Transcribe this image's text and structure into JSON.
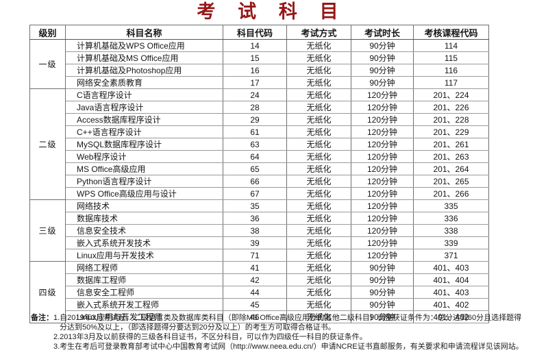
{
  "page": {
    "title": "考 试 科 目",
    "title_color": "#961616"
  },
  "table": {
    "headers": [
      "级别",
      "科目名称",
      "科目代码",
      "考试方式",
      "考试时长",
      "考核课程代码"
    ],
    "groups": [
      {
        "level": "一级",
        "rows": [
          {
            "subject": "计算机基础及WPS Office应用",
            "code": "14",
            "method": "无纸化",
            "duration": "90分钟",
            "course_codes": "114"
          },
          {
            "subject": "计算机基础及MS Office应用",
            "code": "15",
            "method": "无纸化",
            "duration": "90分钟",
            "course_codes": "115"
          },
          {
            "subject": "计算机基础及Photoshop应用",
            "code": "16",
            "method": "无纸化",
            "duration": "90分钟",
            "course_codes": "116"
          },
          {
            "subject": "网络安全素质教育",
            "code": "17",
            "method": "无纸化",
            "duration": "90分钟",
            "course_codes": "117"
          }
        ]
      },
      {
        "level": "二级",
        "rows": [
          {
            "subject": "C语言程序设计",
            "code": "24",
            "method": "无纸化",
            "duration": "120分钟",
            "course_codes": "201、224"
          },
          {
            "subject": "Java语言程序设计",
            "code": "28",
            "method": "无纸化",
            "duration": "120分钟",
            "course_codes": "201、226"
          },
          {
            "subject": "Access数据库程序设计",
            "code": "29",
            "method": "无纸化",
            "duration": "120分钟",
            "course_codes": "201、228"
          },
          {
            "subject": "C++语言程序设计",
            "code": "61",
            "method": "无纸化",
            "duration": "120分钟",
            "course_codes": "201、229"
          },
          {
            "subject": "MySQL数据库程序设计",
            "code": "63",
            "method": "无纸化",
            "duration": "120分钟",
            "course_codes": "201、261"
          },
          {
            "subject": "Web程序设计",
            "code": "64",
            "method": "无纸化",
            "duration": "120分钟",
            "course_codes": "201、263"
          },
          {
            "subject": "MS Office高级应用",
            "code": "65",
            "method": "无纸化",
            "duration": "120分钟",
            "course_codes": "201、264"
          },
          {
            "subject": "Python语言程序设计",
            "code": "66",
            "method": "无纸化",
            "duration": "120分钟",
            "course_codes": "201、265"
          },
          {
            "subject": "WPS Office高级应用与设计",
            "code": "67",
            "method": "无纸化",
            "duration": "120分钟",
            "course_codes": "201、266"
          }
        ]
      },
      {
        "level": "三级",
        "rows": [
          {
            "subject": "网络技术",
            "code": "35",
            "method": "无纸化",
            "duration": "120分钟",
            "course_codes": "335"
          },
          {
            "subject": "数据库技术",
            "code": "36",
            "method": "无纸化",
            "duration": "120分钟",
            "course_codes": "336"
          },
          {
            "subject": "信息安全技术",
            "code": "38",
            "method": "无纸化",
            "duration": "120分钟",
            "course_codes": "338"
          },
          {
            "subject": "嵌入式系统开发技术",
            "code": "39",
            "method": "无纸化",
            "duration": "120分钟",
            "course_codes": "339"
          },
          {
            "subject": "Linux应用与开发技术",
            "code": "71",
            "method": "无纸化",
            "duration": "120分钟",
            "course_codes": "371"
          }
        ]
      },
      {
        "level": "四级",
        "rows": [
          {
            "subject": "网络工程师",
            "code": "41",
            "method": "无纸化",
            "duration": "90分钟",
            "course_codes": "401、403"
          },
          {
            "subject": "数据库工程师",
            "code": "42",
            "method": "无纸化",
            "duration": "90分钟",
            "course_codes": "401、404"
          },
          {
            "subject": "信息安全工程师",
            "code": "44",
            "method": "无纸化",
            "duration": "90分钟",
            "course_codes": "401、403"
          },
          {
            "subject": "嵌入式系统开发工程师",
            "code": "45",
            "method": "无纸化",
            "duration": "90分钟",
            "course_codes": "401、402"
          },
          {
            "subject": "Linux应用与开发工程师",
            "code": "46",
            "method": "无纸化",
            "duration": "90分钟",
            "course_codes": "401、402"
          }
        ]
      }
    ]
  },
  "notes": {
    "label": "备注：",
    "items": [
      "1.自2019年3月考试起，二级语言类及数据库类科目（即除MS Office高级应用外的其他二级科目）调整获证条件为：总分达到60分且选择题得分达到50%及以上，（即选择题得分要达到20分及以上）的考生方可取得合格证书。",
      "2.2013年3月及以前获得的三级各科目证书，不区分科目，可以作为四级任一科目的获证条件。",
      "3.考生在考后可登录教育部考试中心中国教育考试网（http://www.neea.edu.cn/）申请NCRE证书直邮服务，有关要求和申请流程详见该网站。"
    ]
  }
}
